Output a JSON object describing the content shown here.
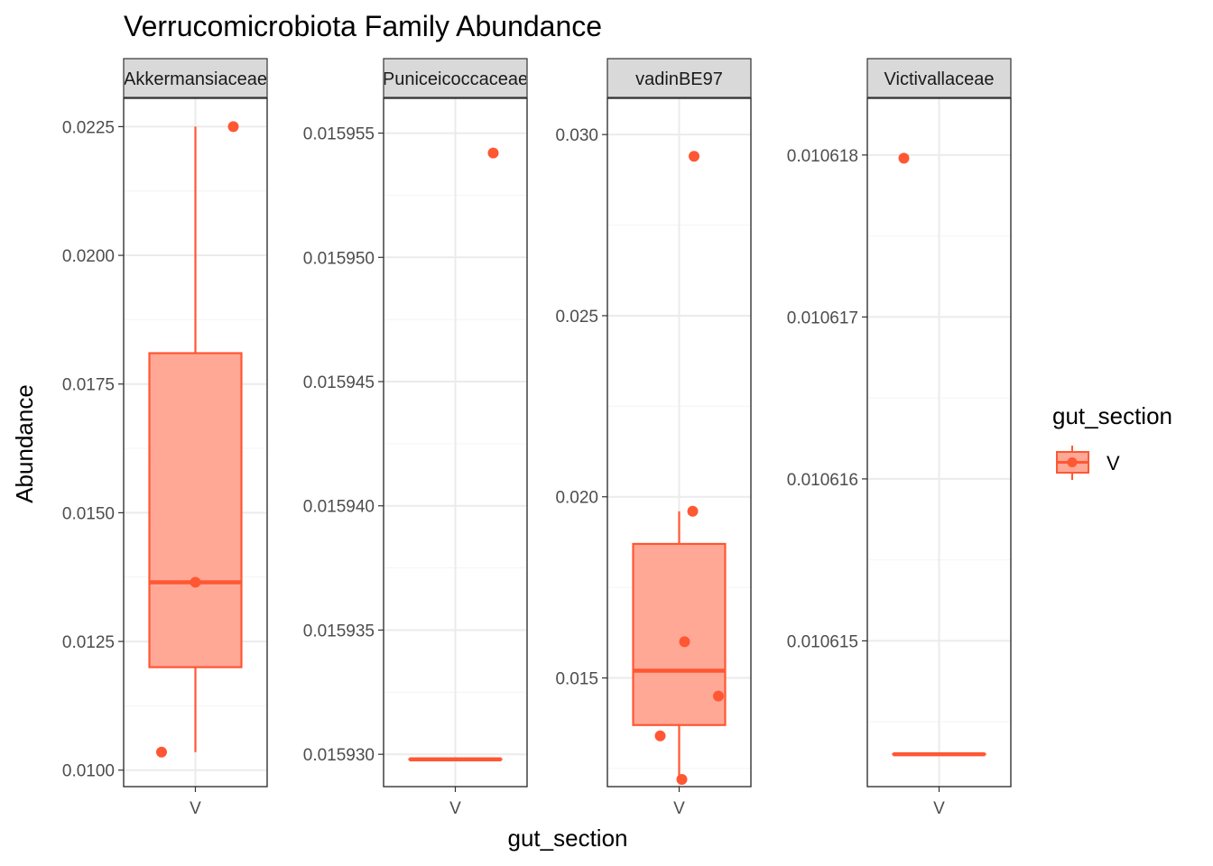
{
  "chart_data": {
    "type": "boxplot",
    "title": "Verrucomicrobiota Family Abundance",
    "xlabel": "gut_section",
    "ylabel": "Abundance",
    "grid": true,
    "legend": {
      "title": "gut_section",
      "position": "right",
      "entries": [
        "V"
      ]
    },
    "colors": {
      "stroke": "#FF5733",
      "fill": "#FFA896",
      "panel_border": "#333333",
      "grid_major": "#EBEBEB",
      "grid_minor": "#F5F5F5",
      "strip_fill": "#D9D9D9"
    },
    "facets": [
      {
        "label": "Akkermansiaceae",
        "ylim": [
          0.00968,
          0.02305
        ],
        "yticks": [
          0.01,
          0.0125,
          0.015,
          0.0175,
          0.02,
          0.0225
        ],
        "ytick_labels": [
          "0.0100",
          "0.0125",
          "0.0150",
          "0.0175",
          "0.0200",
          "0.0225"
        ],
        "category": "V",
        "box": {
          "lower_whisker": 0.01035,
          "q1": 0.012,
          "median": 0.01365,
          "q3": 0.0181,
          "upper_whisker": 0.0225
        },
        "points": [
          {
            "x_jitter": 0.0,
            "y": 0.01365
          },
          {
            "x_jitter": -0.25,
            "y": 0.01035
          },
          {
            "x_jitter": 0.28,
            "y": 0.0225
          }
        ]
      },
      {
        "label": "Puniceicoccaceae",
        "ylim": [
          0.0159287,
          0.0159564
        ],
        "yticks": [
          0.01593,
          0.015935,
          0.01594,
          0.015945,
          0.01595,
          0.015955
        ],
        "ytick_labels": [
          "0.015930",
          "0.015935",
          "0.015940",
          "0.015945",
          "0.015950",
          "0.015955"
        ],
        "category": "V",
        "box": {
          "lower_whisker": 0.0159298,
          "q1": 0.0159298,
          "median": 0.0159298,
          "q3": 0.0159298,
          "upper_whisker": 0.0159298
        },
        "points": [
          {
            "x_jitter": 0.28,
            "y": 0.0159542
          }
        ]
      },
      {
        "label": "vadinBE97",
        "ylim": [
          0.012,
          0.031
        ],
        "yticks": [
          0.015,
          0.02,
          0.025,
          0.03
        ],
        "ytick_labels": [
          "0.015",
          "0.020",
          "0.025",
          "0.030"
        ],
        "category": "V",
        "box": {
          "lower_whisker": 0.0122,
          "q1": 0.0137,
          "median": 0.0152,
          "q3": 0.0187,
          "upper_whisker": 0.0196
        },
        "points": [
          {
            "x_jitter": 0.1,
            "y": 0.0196
          },
          {
            "x_jitter": 0.04,
            "y": 0.016
          },
          {
            "x_jitter": 0.29,
            "y": 0.0145
          },
          {
            "x_jitter": -0.14,
            "y": 0.0134
          },
          {
            "x_jitter": 0.02,
            "y": 0.0122
          },
          {
            "x_jitter": 0.11,
            "y": 0.0294
          }
        ]
      },
      {
        "label": "Victivallaceae",
        "ylim": [
          0.0106141,
          0.01061835
        ],
        "yticks": [
          0.010615,
          0.010616,
          0.010617,
          0.010618
        ],
        "ytick_labels": [
          "0.010615",
          "0.010616",
          "0.010617",
          "0.010618"
        ],
        "category": "V",
        "box": {
          "lower_whisker": 0.0106143,
          "q1": 0.0106143,
          "median": 0.0106143,
          "q3": 0.0106143,
          "upper_whisker": 0.0106143
        },
        "points": [
          {
            "x_jitter": -0.26,
            "y": 0.01061798
          }
        ]
      }
    ]
  }
}
